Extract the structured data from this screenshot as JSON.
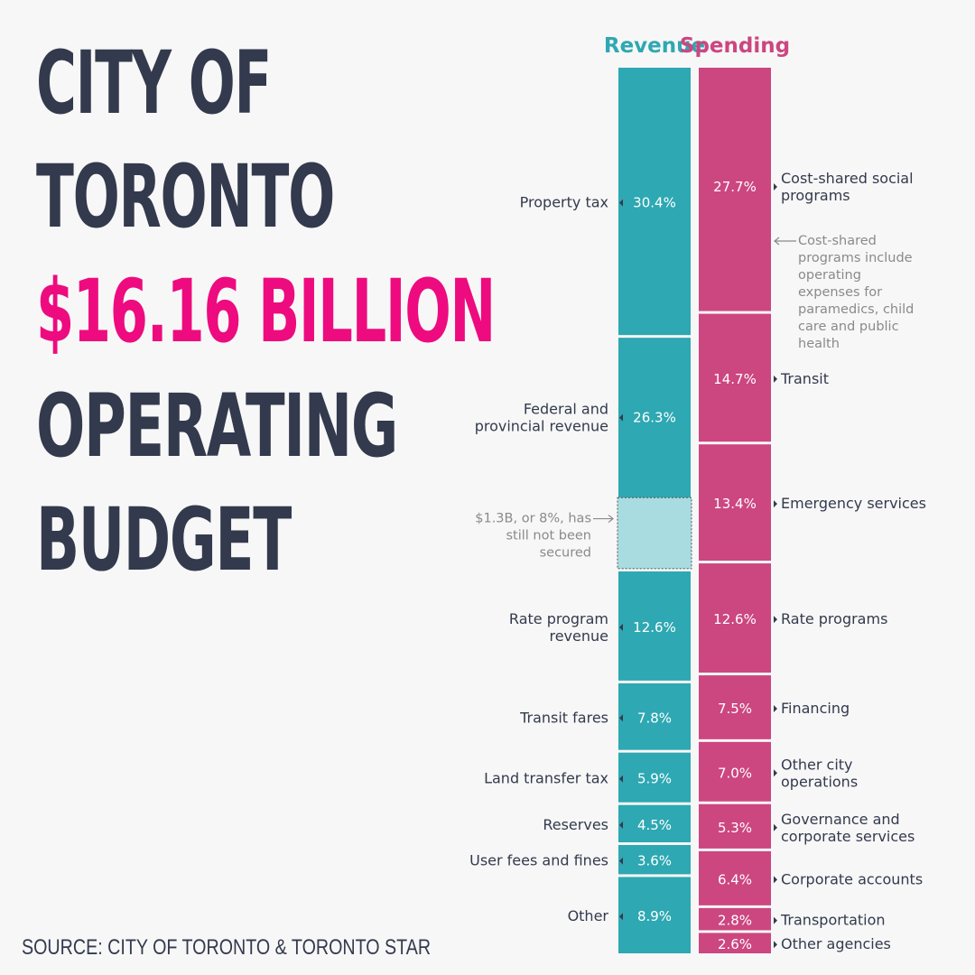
{
  "title": {
    "line1": "CITY OF",
    "line2": "TORONTO",
    "line3": "$16.16 BILLION",
    "line4": "OPERATING",
    "line5": "BUDGET"
  },
  "source": "SOURCE: CITY OF TORONTO & TORONTO STAR",
  "colors": {
    "revenue": "#2ea8b2",
    "revenue_unsecured": "#a8dce0",
    "spending": "#cc4680",
    "title_dark": "#333a4d",
    "title_highlight": "#ed0b7f"
  },
  "chart_data": {
    "type": "stacked-bar",
    "title": "$16.16 BILLION OPERATING BUDGET",
    "unit": "%",
    "columns": [
      {
        "name": "Revenue",
        "segments": [
          {
            "label": "Property tax",
            "value_label": "30.4%",
            "value": 30.4
          },
          {
            "label": "Federal and provincial revenue",
            "value_label": "26.3%",
            "value": 26.3,
            "unsecured_note": "$1.3B, or 8%, has still not been secured",
            "unsecured_value": 8
          },
          {
            "label": "Rate program revenue",
            "value_label": "12.6%",
            "value": 12.6
          },
          {
            "label": "Transit fares",
            "value_label": "7.8%",
            "value": 7.8
          },
          {
            "label": "Land transfer tax",
            "value_label": "5.9%",
            "value": 5.9
          },
          {
            "label": "Reserves",
            "value_label": "4.5%",
            "value": 4.5
          },
          {
            "label": "User fees and fines",
            "value_label": "3.6%",
            "value": 3.6
          },
          {
            "label": "Other",
            "value_label": "8.9%",
            "value": 8.9
          }
        ]
      },
      {
        "name": "Spending",
        "segments": [
          {
            "label": "Cost-shared social programs",
            "value_label": "27.7%",
            "value": 27.7,
            "note": "Cost-shared programs include operating expenses for paramedics, child care and public health"
          },
          {
            "label": "Transit",
            "value_label": "14.7%",
            "value": 14.7
          },
          {
            "label": "Emergency services",
            "value_label": "13.4%",
            "value": 13.4
          },
          {
            "label": "Rate programs",
            "value_label": "12.6%",
            "value": 12.6
          },
          {
            "label": "Financing",
            "value_label": "7.5%",
            "value": 7.5
          },
          {
            "label": "Other city operations",
            "value_label": "7.0%",
            "value": 7.0
          },
          {
            "label": "Governance and corporate services",
            "value_label": "5.3%",
            "value": 5.3
          },
          {
            "label": "Corporate accounts",
            "value_label": "6.4%",
            "value": 6.4
          },
          {
            "label": "Transportation",
            "value_label": "2.8%",
            "value": 2.8
          },
          {
            "label": "Other agencies",
            "value_label": "2.6%",
            "value": 2.6
          }
        ]
      }
    ]
  }
}
